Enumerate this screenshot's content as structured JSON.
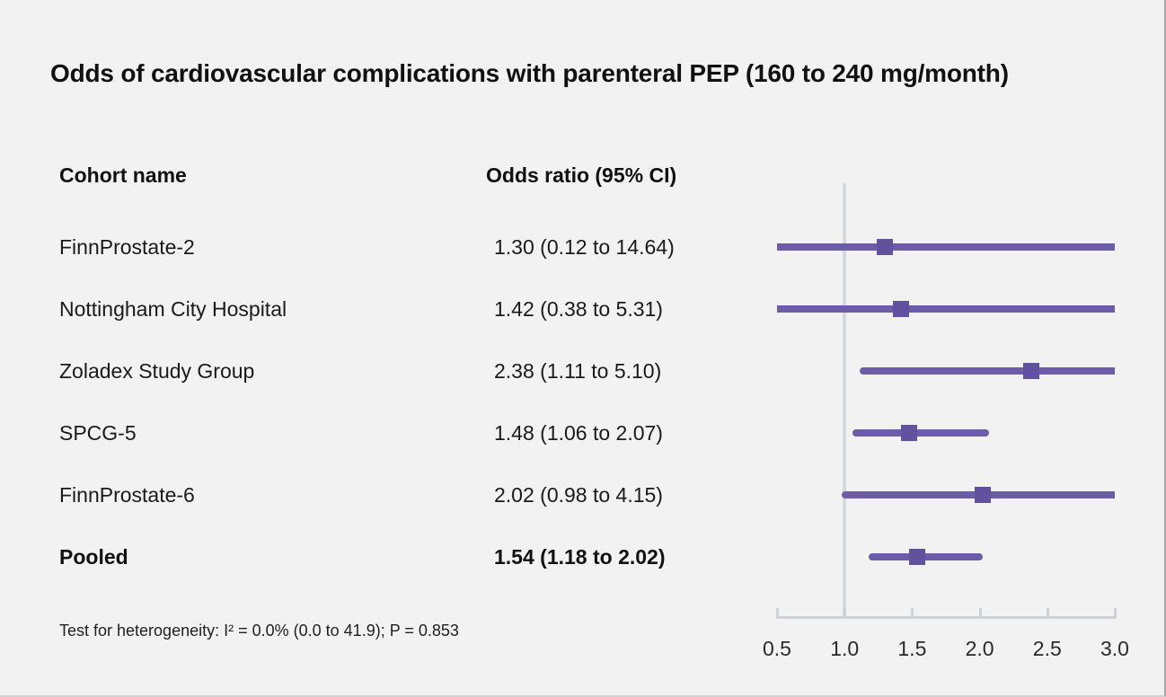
{
  "title": "Odds of cardiovascular complications with parenteral PEP (160 to 240 mg/month)",
  "columns": {
    "cohort": "Cohort name",
    "odds": "Odds ratio (95% CI)"
  },
  "footnote": "Test for heterogeneity: I² = 0.0% (0.0 to 41.9); P = 0.853",
  "colors": {
    "background": "#f2f2f2",
    "ci_line": "#6c5caa",
    "marker": "#61519f",
    "reference_line": "#d5dae2",
    "axis": "#ccd2da",
    "text": "#1a1a1a"
  },
  "chart_data": {
    "type": "forest",
    "title": "Odds of cardiovascular complications with parenteral PEP (160 to 240 mg/month)",
    "xlim": [
      0.5,
      3.0
    ],
    "reference_value": 1.0,
    "ticks": [
      0.5,
      1.0,
      1.5,
      2.0,
      2.5,
      3.0
    ],
    "tick_labels": [
      "0.5",
      "1.0",
      "1.5",
      "2.0",
      "2.5",
      "3.0"
    ],
    "grid": false,
    "rows": [
      {
        "cohort": "FinnProstate-2",
        "odds_label": "1.30 (0.12 to 14.64)",
        "or": 1.3,
        "lo": 0.12,
        "hi": 14.64,
        "bold": false
      },
      {
        "cohort": "Nottingham City Hospital",
        "odds_label": "1.42 (0.38 to 5.31)",
        "or": 1.42,
        "lo": 0.38,
        "hi": 5.31,
        "bold": false
      },
      {
        "cohort": "Zoladex Study Group",
        "odds_label": "2.38 (1.11 to 5.10)",
        "or": 2.38,
        "lo": 1.11,
        "hi": 5.1,
        "bold": false
      },
      {
        "cohort": "SPCG-5",
        "odds_label": "1.48 (1.06 to 2.07)",
        "or": 1.48,
        "lo": 1.06,
        "hi": 2.07,
        "bold": false
      },
      {
        "cohort": "FinnProstate-6",
        "odds_label": "2.02 (0.98 to 4.15)",
        "or": 2.02,
        "lo": 0.98,
        "hi": 4.15,
        "bold": false
      },
      {
        "cohort": "Pooled",
        "odds_label": "1.54 (1.18 to 2.02)",
        "or": 1.54,
        "lo": 1.18,
        "hi": 2.02,
        "bold": true
      }
    ]
  }
}
